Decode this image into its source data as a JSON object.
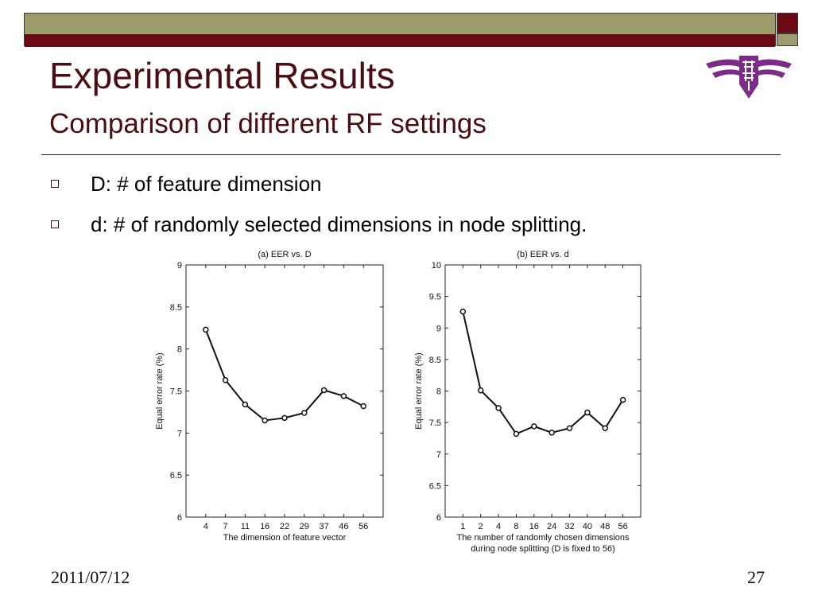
{
  "slide": {
    "title": "Experimental Results",
    "subtitle": "Comparison of different RF settings",
    "bullets": [
      "D: # of feature dimension",
      "d: # of randomly selected dimensions in node splitting."
    ],
    "footer_date": "2011/07/12",
    "page_number": "27"
  },
  "colors": {
    "olive": "#9c9c6c",
    "maroon": "#6b0a14",
    "title": "#4a0e12",
    "logo": "#7b2c86"
  },
  "chart_data": [
    {
      "type": "line",
      "title": "(a) EER vs. D",
      "xlabel": "The dimension of feature vector",
      "xlabel2": "",
      "ylabel": "Equal error rate (%)",
      "categories": [
        "4",
        "7",
        "11",
        "16",
        "22",
        "29",
        "37",
        "46",
        "56"
      ],
      "values": [
        8.23,
        7.63,
        7.34,
        7.15,
        7.18,
        7.24,
        7.51,
        7.44,
        7.32
      ],
      "ylim": [
        6,
        9
      ],
      "yticks": [
        "6",
        "6.5",
        "7",
        "7.5",
        "8",
        "8.5",
        "9"
      ],
      "grid": false
    },
    {
      "type": "line",
      "title": "(b) EER vs. d",
      "xlabel": "The number of randomly chosen dimensions",
      "xlabel2": "during node splitting (D is fixed to 56)",
      "ylabel": "Equal error rate (%)",
      "categories": [
        "1",
        "2",
        "4",
        "8",
        "16",
        "24",
        "32",
        "40",
        "48",
        "56"
      ],
      "values": [
        9.26,
        8.01,
        7.73,
        7.32,
        7.44,
        7.34,
        7.41,
        7.66,
        7.41,
        7.86
      ],
      "ylim": [
        6,
        10
      ],
      "yticks": [
        "6",
        "6.5",
        "7",
        "7.5",
        "8",
        "8.5",
        "9",
        "9.5",
        "10"
      ],
      "grid": false
    }
  ]
}
